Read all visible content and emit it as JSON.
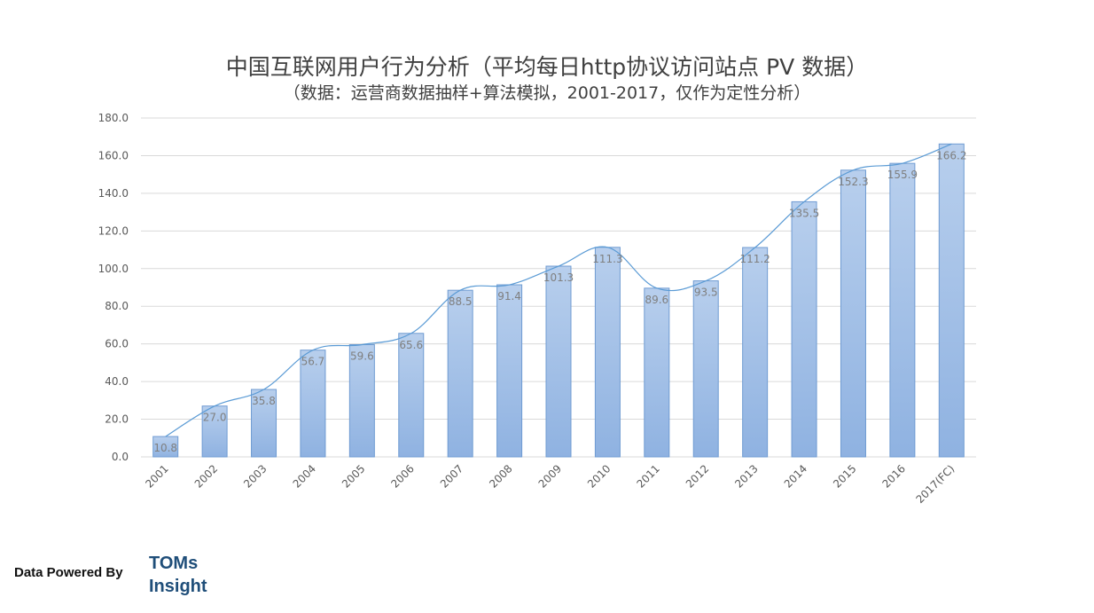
{
  "chart_data": {
    "type": "bar",
    "title": "中国互联网用户行为分析（平均每日http协议访问站点 PV 数据）",
    "subtitle": "（数据：运营商数据抽样+算法模拟，2001-2017，仅作为定性分析）",
    "categories": [
      "2001",
      "2002",
      "2003",
      "2004",
      "2005",
      "2006",
      "2007",
      "2008",
      "2009",
      "2010",
      "2011",
      "2012",
      "2013",
      "2014",
      "2015",
      "2016",
      "2017(FC)"
    ],
    "values": [
      10.8,
      27.0,
      35.8,
      56.7,
      59.6,
      65.6,
      88.5,
      91.4,
      101.3,
      111.3,
      89.6,
      93.5,
      111.2,
      135.5,
      152.3,
      155.9,
      166.2
    ],
    "value_labels": [
      "10.8",
      "27.0",
      "35.8",
      "56.7",
      "59.6",
      "65.6",
      "88.5",
      "91.4",
      "101.3",
      "111.3",
      "89.6",
      "93.5",
      "111.2",
      "135.5",
      "152.3",
      "155.9",
      "166.2"
    ],
    "trendline": true,
    "ylim": [
      0,
      180
    ],
    "yticks": [
      "0.0",
      "20.0",
      "40.0",
      "60.0",
      "80.0",
      "100.0",
      "120.0",
      "140.0",
      "160.0",
      "180.0"
    ],
    "grid": true,
    "xlabel": "",
    "ylabel": "",
    "colors": {
      "bar_top": "#b8cfed",
      "bar_bottom": "#8fb2e1",
      "bar_stroke": "#6f9bd2",
      "line": "#5b9bd5",
      "grid": "#d9d9d9",
      "label": "#7f7f7f"
    }
  },
  "footer": {
    "powered_by": "Data Powered By",
    "brand_line1": "TOMs",
    "brand_line2": "Insight"
  }
}
